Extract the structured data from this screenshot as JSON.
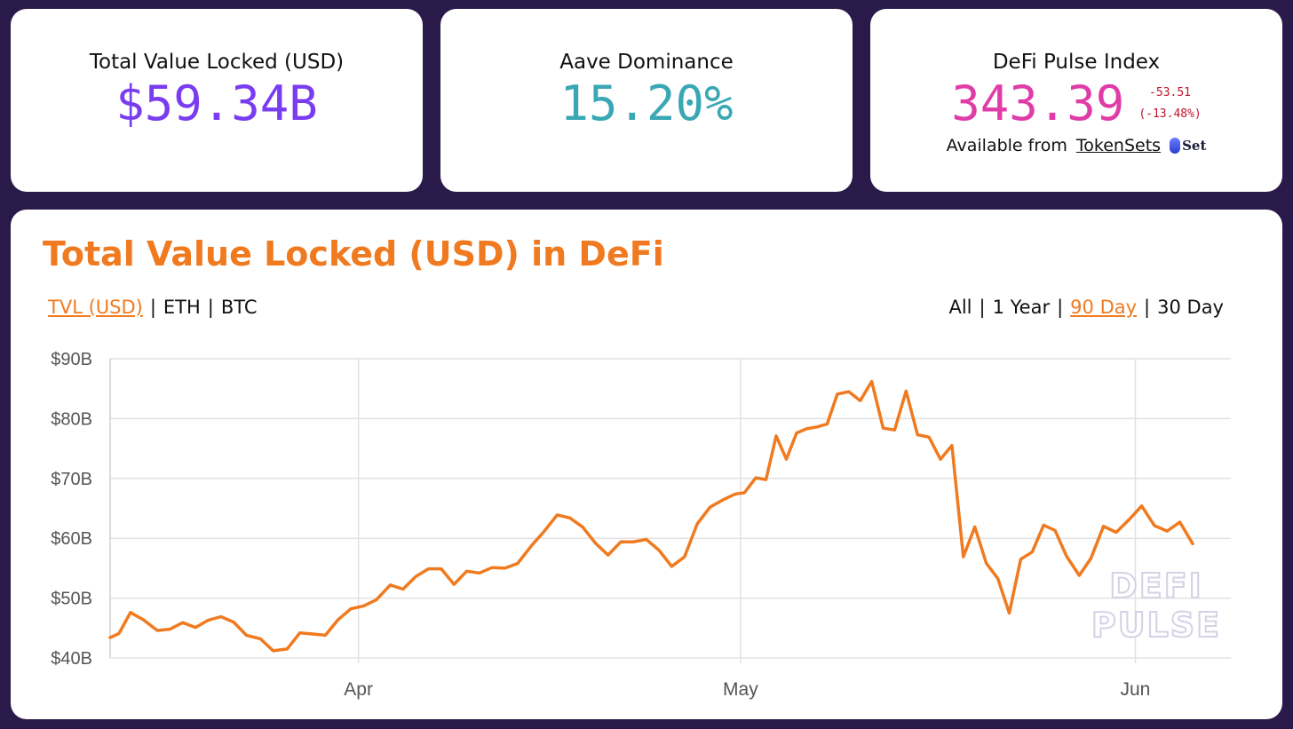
{
  "stats": {
    "tvl": {
      "label": "Total Value Locked (USD)",
      "value": "$59.34B",
      "color": "#7a3cf0"
    },
    "aave": {
      "label": "Aave Dominance",
      "value": "15.20%",
      "color": "#3aa8b4"
    },
    "dpi": {
      "label": "DeFi Pulse Index",
      "value": "343.39",
      "color": "#e03ca8",
      "change": "-53.51",
      "change_pct": "(-13.48%)",
      "change_color": "#c0142a",
      "available_text": "Available from",
      "link_text": "TokenSets",
      "logo_text": "Set"
    }
  },
  "main": {
    "title": "Total Value Locked (USD) in DeFi",
    "accent": "#f07a1f",
    "metric_tabs": [
      {
        "label": "TVL (USD)",
        "active": true
      },
      {
        "label": "ETH",
        "active": false
      },
      {
        "label": "BTC",
        "active": false
      }
    ],
    "range_tabs": [
      {
        "label": "All",
        "active": false
      },
      {
        "label": "1 Year",
        "active": false
      },
      {
        "label": "90 Day",
        "active": true
      },
      {
        "label": "30 Day",
        "active": false
      }
    ],
    "watermark": [
      "DEFI",
      "PULSE"
    ]
  },
  "chart_data": {
    "type": "line",
    "title": "",
    "xlabel": "",
    "ylabel": "",
    "ylim": [
      40,
      90
    ],
    "yticks": [
      "$40B",
      "$50B",
      "$60B",
      "$70B",
      "$80B",
      "$90B"
    ],
    "ytick_values": [
      40,
      50,
      60,
      70,
      80,
      90
    ],
    "xticks": [
      {
        "label": "Apr",
        "day": 0
      },
      {
        "label": "May",
        "day": 30
      },
      {
        "label": "Jun",
        "day": 61
      }
    ],
    "x_range": [
      -19.5,
      68.5
    ],
    "grid": true,
    "series": [
      {
        "color": "#f07a1f",
        "points": [
          [
            -19.5,
            43.4
          ],
          [
            -18.8,
            44.1
          ],
          [
            -17.9,
            47.6
          ],
          [
            -16.9,
            46.4
          ],
          [
            -15.8,
            44.6
          ],
          [
            -14.8,
            44.8
          ],
          [
            -13.8,
            45.9
          ],
          [
            -12.8,
            45.1
          ],
          [
            -11.8,
            46.3
          ],
          [
            -10.8,
            46.9
          ],
          [
            -9.8,
            46.0
          ],
          [
            -8.8,
            43.8
          ],
          [
            -7.7,
            43.2
          ],
          [
            -6.7,
            41.2
          ],
          [
            -5.6,
            41.5
          ],
          [
            -4.6,
            44.2
          ],
          [
            -3.6,
            44.0
          ],
          [
            -2.6,
            43.8
          ],
          [
            -1.6,
            46.4
          ],
          [
            -0.6,
            48.2
          ],
          [
            0.4,
            48.7
          ],
          [
            1.4,
            49.7
          ],
          [
            2.5,
            52.2
          ],
          [
            3.5,
            51.5
          ],
          [
            4.5,
            53.6
          ],
          [
            5.5,
            54.9
          ],
          [
            6.5,
            54.9
          ],
          [
            7.5,
            52.3
          ],
          [
            8.5,
            54.5
          ],
          [
            9.5,
            54.2
          ],
          [
            10.5,
            55.1
          ],
          [
            11.5,
            55.0
          ],
          [
            12.5,
            55.8
          ],
          [
            13.6,
            58.8
          ],
          [
            14.6,
            61.2
          ],
          [
            15.6,
            63.9
          ],
          [
            16.6,
            63.4
          ],
          [
            17.6,
            61.9
          ],
          [
            18.6,
            59.2
          ],
          [
            19.6,
            57.2
          ],
          [
            20.6,
            59.4
          ],
          [
            21.6,
            59.4
          ],
          [
            22.6,
            59.8
          ],
          [
            23.6,
            58.0
          ],
          [
            24.6,
            55.3
          ],
          [
            25.6,
            56.9
          ],
          [
            26.6,
            62.4
          ],
          [
            27.6,
            65.2
          ],
          [
            28.6,
            66.4
          ],
          [
            29.6,
            67.4
          ],
          [
            30.3,
            67.6
          ],
          [
            31.2,
            70.1
          ],
          [
            32.0,
            69.8
          ],
          [
            32.8,
            77.1
          ],
          [
            33.6,
            73.2
          ],
          [
            34.4,
            77.6
          ],
          [
            35.2,
            78.3
          ],
          [
            36.0,
            78.6
          ],
          [
            36.8,
            79.1
          ],
          [
            37.6,
            84.1
          ],
          [
            38.5,
            84.5
          ],
          [
            39.4,
            83.0
          ],
          [
            40.3,
            86.2
          ],
          [
            41.2,
            78.4
          ],
          [
            42.1,
            78.1
          ],
          [
            43.0,
            84.6
          ],
          [
            43.9,
            77.3
          ],
          [
            44.8,
            76.9
          ],
          [
            45.7,
            73.2
          ],
          [
            46.6,
            75.5
          ],
          [
            47.5,
            56.9
          ],
          [
            48.4,
            61.9
          ],
          [
            49.3,
            55.8
          ],
          [
            50.2,
            53.3
          ],
          [
            51.1,
            47.5
          ],
          [
            52.0,
            56.5
          ],
          [
            52.9,
            57.7
          ],
          [
            53.8,
            62.2
          ],
          [
            54.7,
            61.3
          ],
          [
            55.6,
            57.0
          ],
          [
            56.6,
            53.8
          ],
          [
            57.5,
            56.6
          ],
          [
            58.5,
            62.0
          ],
          [
            59.5,
            61.0
          ],
          [
            60.5,
            63.1
          ],
          [
            61.5,
            65.4
          ],
          [
            62.5,
            62.1
          ],
          [
            63.5,
            61.2
          ],
          [
            64.5,
            62.7
          ],
          [
            65.5,
            59.1
          ]
        ]
      }
    ]
  }
}
